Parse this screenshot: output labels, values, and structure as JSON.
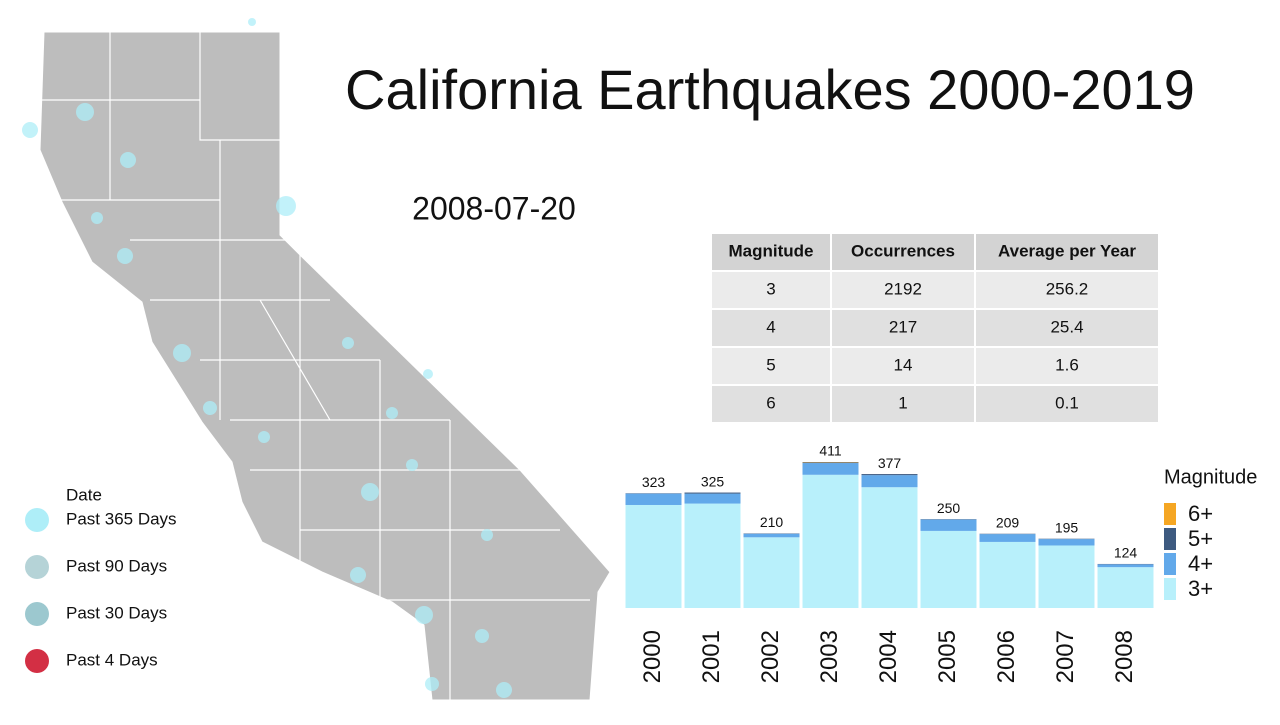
{
  "title": "California Earthquakes 2000-2019",
  "date": "2008-07-20",
  "map_legend": {
    "title": "Date",
    "items": [
      {
        "label": "Past 365 Days",
        "color": "#aeeef8"
      },
      {
        "label": "Past 90 Days",
        "color": "#b5d3d7"
      },
      {
        "label": "Past 30 Days",
        "color": "#9cc8cf"
      },
      {
        "label": "Past 4 Days",
        "color": "#d32f44"
      }
    ]
  },
  "table": {
    "header": [
      "Magnitude",
      "Occurrences",
      "Average per Year"
    ],
    "rows": [
      [
        3,
        2192,
        256.2
      ],
      [
        4,
        217,
        25.4
      ],
      [
        5,
        14,
        1.6
      ],
      [
        6,
        1,
        0.1
      ]
    ]
  },
  "chart_data": {
    "type": "bar",
    "stacked": true,
    "legend_title": "Magnitude",
    "categories": [
      "2000",
      "2001",
      "2002",
      "2003",
      "2004",
      "2005",
      "2006",
      "2007",
      "2008"
    ],
    "totals": [
      323,
      325,
      210,
      411,
      377,
      250,
      209,
      195,
      124
    ],
    "series": [
      {
        "name": "3+",
        "color": "#b8f0fb",
        "values": [
          290,
          294,
          199,
          375,
          340,
          217,
          186,
          176,
          115
        ]
      },
      {
        "name": "4+",
        "color": "#62a9ea",
        "values": [
          32,
          28,
          10,
          33,
          34,
          32,
          22,
          18,
          8
        ]
      },
      {
        "name": "5+",
        "color": "#3d5a80",
        "values": [
          1,
          3,
          1,
          2,
          3,
          1,
          1,
          1,
          1
        ]
      },
      {
        "name": "6+",
        "color": "#f5a623",
        "values": [
          0,
          0,
          0,
          1,
          0,
          0,
          0,
          0,
          0
        ]
      }
    ]
  }
}
